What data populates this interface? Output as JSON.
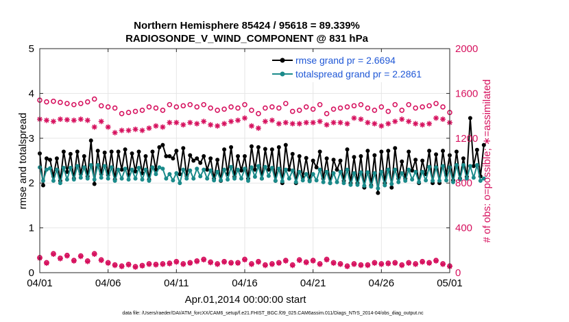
{
  "chart_data": {
    "type": "line",
    "title": "Northern Hemisphere 85424 / 95618 = 89.339%",
    "subtitle": "RADIOSONDE_V_WIND_COMPONENT @ 831 hPa",
    "xlabel": "Apr.01,2014 00:00:00 start",
    "ylabel_left": "rmse and totalspread",
    "ylabel_right": "# of obs: o=possible; ∗=assimilated",
    "footnote": "data file: /Users/raeder/DAI/ATM_forcXX/CAM6_setup/f.e21.FHIST_BGC.f09_025.CAM6assim.011/Diags_NTrS_2014-04/obs_diag_output.nc",
    "xlim": [
      0,
      30
    ],
    "ylim_left": [
      0,
      5
    ],
    "ylim_right": [
      0,
      2000
    ],
    "x_ticks": [
      {
        "value": 0,
        "label": "04/01"
      },
      {
        "value": 5,
        "label": "04/06"
      },
      {
        "value": 10,
        "label": "04/11"
      },
      {
        "value": 15,
        "label": "04/16"
      },
      {
        "value": 20,
        "label": "04/21"
      },
      {
        "value": 25,
        "label": "04/26"
      },
      {
        "value": 30,
        "label": "05/01"
      }
    ],
    "y_ticks_left": [
      "0",
      "1",
      "2",
      "3",
      "4",
      "5"
    ],
    "y_ticks_right": [
      "0",
      "400",
      "800",
      "1200",
      "1600",
      "2000"
    ],
    "colors": {
      "rmse": "#000000",
      "spread": "#1a8a8a",
      "obs": "#d6115e",
      "legend_text": "#1f57d6",
      "grid": "#e6e6e6"
    },
    "series": [
      {
        "name": "rmse grand pr = 2.6694",
        "axis": "left",
        "start": 0.0,
        "step": 0.25,
        "values": [
          2.66,
          1.95,
          2.55,
          2.52,
          2.15,
          2.55,
          2.05,
          2.7,
          2.25,
          2.65,
          2.1,
          2.7,
          2.2,
          2.6,
          2.15,
          2.95,
          1.98,
          2.72,
          2.2,
          2.68,
          2.18,
          2.7,
          2.08,
          2.7,
          2.3,
          2.75,
          2.18,
          2.66,
          2.26,
          2.7,
          2.22,
          2.6,
          2.08,
          2.7,
          2.3,
          2.8,
          2.85,
          2.6,
          2.6,
          2.55,
          2.72,
          2.2,
          2.78,
          2.16,
          2.62,
          2.5,
          2.55,
          2.45,
          2.6,
          2.3,
          2.55,
          2.1,
          2.52,
          2.05,
          2.75,
          2.2,
          2.8,
          2.14,
          2.6,
          2.28,
          2.6,
          2.1,
          2.82,
          2.3,
          2.8,
          2.1,
          2.76,
          2.3,
          2.75,
          2.05,
          2.8,
          2.0,
          2.85,
          2.3,
          2.65,
          2.0,
          2.6,
          2.12,
          2.56,
          2.06,
          2.5,
          2.35,
          2.7,
          2.1,
          2.55,
          2.0,
          2.52,
          2.3,
          2.5,
          2.05,
          2.75,
          2.0,
          2.58,
          2.0,
          2.6,
          1.9,
          2.72,
          1.95,
          2.62,
          1.78,
          2.7,
          2.0,
          2.72,
          1.9,
          2.78,
          2.1,
          2.48,
          2.1,
          2.7,
          2.28,
          2.52,
          2.0,
          2.5,
          2.2,
          2.72,
          2.0,
          2.64,
          2.0,
          2.72,
          2.18,
          2.62,
          2.06,
          2.7,
          2.1,
          2.55,
          2.14,
          3.45,
          2.38,
          2.74,
          2.15,
          2.85
        ]
      },
      {
        "name": "totalspread grand pr = 2.2861",
        "axis": "left",
        "start": 0.0,
        "step": 0.25,
        "values": [
          2.35,
          2.05,
          2.3,
          2.33,
          2.05,
          2.3,
          2.0,
          2.34,
          2.08,
          2.34,
          2.08,
          2.38,
          2.12,
          2.35,
          2.1,
          2.4,
          2.08,
          2.4,
          2.12,
          2.38,
          2.1,
          2.35,
          2.05,
          2.3,
          2.1,
          2.32,
          2.08,
          2.3,
          2.1,
          2.34,
          2.08,
          2.3,
          2.05,
          2.35,
          2.2,
          2.35,
          2.32,
          2.1,
          2.2,
          2.06,
          2.22,
          2.0,
          2.3,
          2.1,
          2.28,
          2.1,
          2.32,
          2.15,
          2.3,
          2.1,
          2.28,
          2.06,
          2.25,
          2.06,
          2.3,
          2.08,
          2.36,
          2.1,
          2.3,
          2.1,
          2.32,
          2.05,
          2.35,
          2.14,
          2.38,
          2.1,
          2.36,
          2.16,
          2.34,
          2.05,
          2.32,
          2.04,
          2.3,
          2.1,
          2.28,
          2.02,
          2.25,
          2.06,
          2.2,
          2.04,
          2.2,
          2.06,
          2.3,
          2.02,
          2.25,
          2.0,
          2.22,
          2.02,
          2.25,
          2.0,
          2.3,
          1.96,
          2.22,
          1.96,
          2.24,
          1.94,
          2.24,
          1.92,
          2.22,
          1.88,
          2.25,
          1.95,
          2.3,
          1.98,
          2.3,
          2.02,
          2.22,
          2.05,
          2.3,
          2.08,
          2.25,
          2.02,
          2.25,
          2.06,
          2.36,
          2.05,
          2.35,
          2.05,
          2.38,
          2.06,
          2.35,
          2.02,
          2.4,
          2.08,
          2.4,
          2.1,
          2.38,
          2.12,
          2.4,
          2.05,
          2.1
        ]
      },
      {
        "name": "possible obs",
        "axis": "right",
        "marker": "o",
        "start": 0.0,
        "step": 0.5,
        "values": [
          1540,
          1525,
          1530,
          1520,
          1510,
          1500,
          1510,
          1525,
          1550,
          1490,
          1480,
          1470,
          1420,
          1430,
          1440,
          1450,
          1480,
          1470,
          1450,
          1500,
          1480,
          1490,
          1500,
          1480,
          1500,
          1470,
          1450,
          1460,
          1480,
          1470,
          1500,
          1450,
          1420,
          1470,
          1480,
          1470,
          1510,
          1440,
          1450,
          1480,
          1460,
          1500,
          1420,
          1460,
          1470,
          1480,
          1490,
          1500,
          1470,
          1450,
          1480,
          1440,
          1500,
          1450,
          1500,
          1470,
          1480,
          1490,
          1510,
          1480,
          1430
        ]
      },
      {
        "name": "assimilated obs",
        "axis": "right",
        "marker": "*",
        "start": 0.0,
        "step": 0.5,
        "values": [
          1370,
          1360,
          1350,
          1370,
          1365,
          1360,
          1370,
          1360,
          1300,
          1350,
          1300,
          1250,
          1270,
          1270,
          1280,
          1270,
          1290,
          1310,
          1300,
          1340,
          1340,
          1320,
          1340,
          1330,
          1350,
          1320,
          1310,
          1330,
          1350,
          1360,
          1380,
          1310,
          1290,
          1350,
          1360,
          1330,
          1340,
          1330,
          1330,
          1340,
          1340,
          1350,
          1320,
          1340,
          1340,
          1330,
          1380,
          1370,
          1340,
          1330,
          1310,
          1330,
          1350,
          1370,
          1350,
          1330,
          1320,
          1330,
          1380,
          1370,
          1340
        ]
      },
      {
        "name": "possible obs (low)",
        "axis": "right",
        "marker": "o",
        "start": 0.0,
        "step": 0.5,
        "values": [
          135,
          90,
          170,
          130,
          155,
          110,
          150,
          105,
          170,
          115,
          90,
          70,
          60,
          75,
          55,
          65,
          80,
          75,
          80,
          85,
          100,
          80,
          90,
          105,
          120,
          95,
          80,
          100,
          90,
          90,
          120,
          80,
          100,
          70,
          80,
          90,
          110,
          70,
          115,
          95,
          110,
          80,
          120,
          90,
          80,
          60,
          80,
          70,
          70,
          90,
          80,
          85,
          90,
          70,
          90,
          80,
          100,
          90,
          110,
          80,
          60
        ]
      },
      {
        "name": "assimilated obs (low)",
        "axis": "right",
        "marker": "*",
        "start": 0.0,
        "step": 0.5,
        "values": [
          130,
          85,
          165,
          125,
          150,
          105,
          145,
          100,
          165,
          110,
          85,
          65,
          55,
          70,
          50,
          60,
          75,
          70,
          75,
          80,
          95,
          75,
          85,
          100,
          115,
          90,
          75,
          95,
          85,
          85,
          115,
          75,
          95,
          65,
          75,
          85,
          105,
          65,
          110,
          90,
          105,
          75,
          115,
          85,
          75,
          55,
          75,
          65,
          65,
          85,
          75,
          80,
          85,
          65,
          85,
          75,
          95,
          85,
          105,
          75,
          55
        ]
      }
    ]
  }
}
